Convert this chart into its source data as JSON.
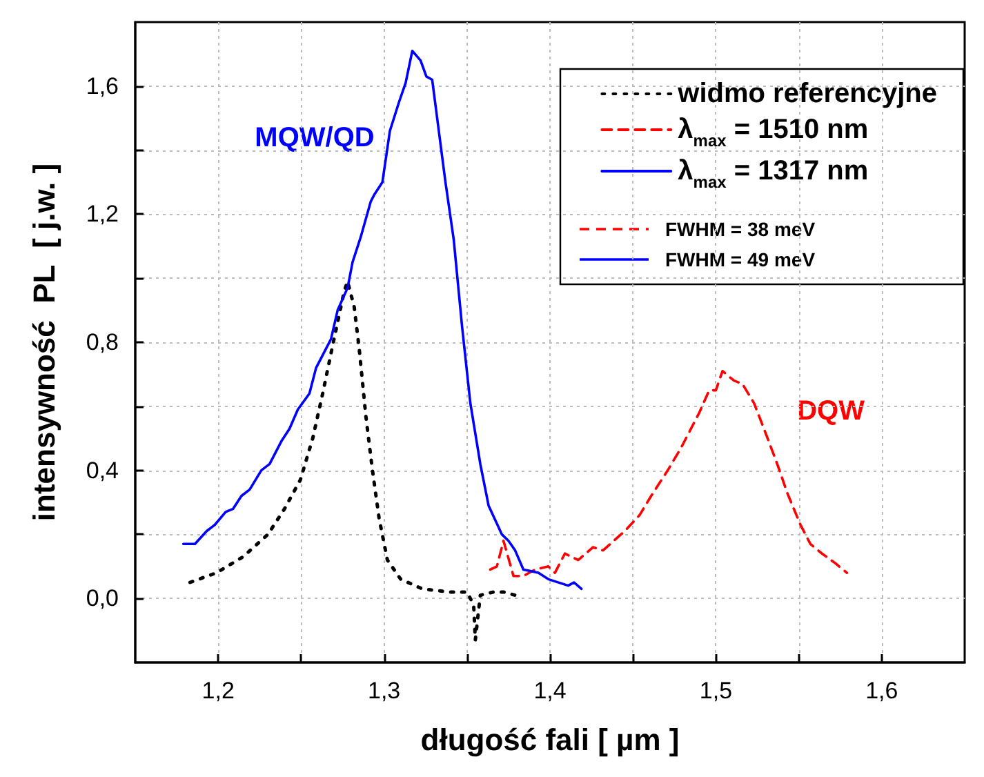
{
  "chart_data": {
    "type": "line",
    "xlabel": "długość fali [ µm ]",
    "ylabel": "intensywność  PL  [ j.w. ]",
    "xlim": [
      1.15,
      1.65
    ],
    "ylim": [
      -0.2,
      1.8
    ],
    "xticks": [
      {
        "value": 1.2,
        "label": "1,2"
      },
      {
        "value": 1.25,
        "label": null
      },
      {
        "value": 1.3,
        "label": "1,3"
      },
      {
        "value": 1.35,
        "label": null
      },
      {
        "value": 1.4,
        "label": "1,4"
      },
      {
        "value": 1.45,
        "label": null
      },
      {
        "value": 1.5,
        "label": "1,5"
      },
      {
        "value": 1.55,
        "label": null
      },
      {
        "value": 1.6,
        "label": "1,6"
      }
    ],
    "yticks": [
      {
        "value": 0,
        "label": "0,0"
      },
      {
        "value": 0.2,
        "label": null
      },
      {
        "value": 0.4,
        "label": "0,4"
      },
      {
        "value": 0.6,
        "label": null
      },
      {
        "value": 0.8,
        "label": "0,8"
      },
      {
        "value": 1.0,
        "label": null
      },
      {
        "value": 1.2,
        "label": "1,2"
      },
      {
        "value": 1.4,
        "label": null
      },
      {
        "value": 1.6,
        "label": "1,6"
      }
    ],
    "grid": true,
    "legend": "top right",
    "marker": "none",
    "series": [
      {
        "name": "widmo referencyjne",
        "color": "#000000",
        "line_style": "dotted",
        "x": [
          1.183,
          1.199,
          1.215,
          1.23,
          1.24,
          1.2495,
          1.257,
          1.263,
          1.269,
          1.276,
          1.278,
          1.282,
          1.285,
          1.289,
          1.293,
          1.297,
          1.302,
          1.31,
          1.323,
          1.339,
          1.35,
          1.354,
          1.355,
          1.358,
          1.366,
          1.372,
          1.379
        ],
        "values": [
          0.05,
          0.08,
          0.13,
          0.2,
          0.28,
          0.37,
          0.5,
          0.64,
          0.79,
          0.96,
          0.99,
          0.91,
          0.78,
          0.57,
          0.4,
          0.25,
          0.12,
          0.06,
          0.03,
          0.02,
          0.02,
          -0.02,
          -0.13,
          0.01,
          0.02,
          0.02,
          0.01
        ]
      },
      {
        "name": "λ$_{max}$ = 1510 nm",
        "color": "#ff0000",
        "line_style": "dashed",
        "x": [
          1.364,
          1.368,
          1.372,
          1.378,
          1.384,
          1.391,
          1.399,
          1.403,
          1.409,
          1.417,
          1.426,
          1.432,
          1.445,
          1.454,
          1.461,
          1.471,
          1.479,
          1.49,
          1.496,
          1.5,
          1.504,
          1.511,
          1.516,
          1.523,
          1.529,
          1.537,
          1.543,
          1.551,
          1.557,
          1.564,
          1.572,
          1.579
        ],
        "values": [
          0.09,
          0.1,
          0.18,
          0.07,
          0.07,
          0.09,
          0.1,
          0.08,
          0.14,
          0.12,
          0.16,
          0.15,
          0.21,
          0.26,
          0.32,
          0.4,
          0.47,
          0.58,
          0.65,
          0.65,
          0.71,
          0.68,
          0.67,
          0.61,
          0.53,
          0.42,
          0.33,
          0.23,
          0.17,
          0.14,
          0.11,
          0.08
        ]
      },
      {
        "name": "λ$_{max}$ = 1317 nm",
        "color": "#0000ff",
        "line_style": "solid",
        "x": [
          1.179,
          1.186,
          1.193,
          1.198,
          1.2045,
          1.209,
          1.214,
          1.219,
          1.226,
          1.231,
          1.238,
          1.243,
          1.248,
          1.255,
          1.259,
          1.263,
          1.268,
          1.272,
          1.278,
          1.281,
          1.286,
          1.292,
          1.294,
          1.299,
          1.3035,
          1.309,
          1.313,
          1.317,
          1.322,
          1.3255,
          1.329,
          1.337,
          1.342,
          1.347,
          1.352,
          1.358,
          1.363,
          1.371,
          1.375,
          1.379,
          1.384,
          1.393,
          1.399,
          1.411,
          1.4145,
          1.419
        ],
        "values": [
          0.17,
          0.17,
          0.21,
          0.23,
          0.27,
          0.28,
          0.32,
          0.34,
          0.4,
          0.42,
          0.49,
          0.53,
          0.59,
          0.64,
          0.72,
          0.76,
          0.81,
          0.9,
          0.97,
          1.05,
          1.13,
          1.24,
          1.26,
          1.3,
          1.46,
          1.55,
          1.61,
          1.71,
          1.68,
          1.63,
          1.62,
          1.3,
          1.12,
          0.85,
          0.61,
          0.42,
          0.29,
          0.2,
          0.18,
          0.15,
          0.09,
          0.08,
          0.06,
          0.04,
          0.05,
          0.03
        ]
      }
    ],
    "annotations": [
      {
        "text": "FWHM = 38 meV"
      },
      {
        "text": "FWHM = 49 meV"
      },
      "MQW/QD",
      "DQW"
    ]
  }
}
